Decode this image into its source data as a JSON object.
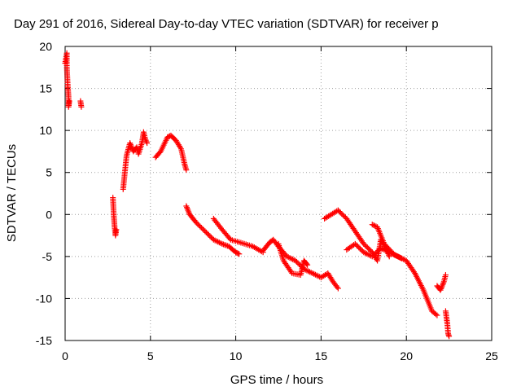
{
  "chart_data": {
    "type": "scatter",
    "title": "Day 291 of 2016, Sidereal Day-to-day VTEC variation (SDTVAR) for receiver p",
    "xlabel": "GPS time / hours",
    "ylabel": "SDTVAR / TECUs",
    "xlim": [
      0,
      25
    ],
    "ylim": [
      -15,
      20
    ],
    "xticks": [
      0,
      5,
      10,
      15,
      20,
      25
    ],
    "yticks": [
      -15,
      -10,
      -5,
      0,
      5,
      10,
      15,
      20
    ],
    "xtick_labels": [
      "0",
      "5",
      "10",
      "15",
      "20",
      "25"
    ],
    "ytick_labels": [
      "-15",
      "-10",
      "-5",
      "0",
      "5",
      "10",
      "15",
      "20"
    ],
    "grid": true,
    "marker": "+",
    "marker_color": "#ff0000",
    "series": [
      {
        "name": "SDTVAR",
        "segments": [
          [
            [
              0.0,
              18.0
            ],
            [
              0.1,
              19.2
            ],
            [
              0.1,
              17.5
            ],
            [
              0.15,
              15.5
            ],
            [
              0.2,
              14.0
            ],
            [
              0.2,
              12.8
            ],
            [
              0.25,
              13.5
            ]
          ],
          [
            [
              0.9,
              13.5
            ],
            [
              0.95,
              12.8
            ]
          ],
          [
            [
              2.8,
              2.0
            ],
            [
              2.85,
              0.0
            ],
            [
              2.9,
              -1.5
            ],
            [
              2.95,
              -2.5
            ],
            [
              3.0,
              -1.8
            ]
          ],
          [
            [
              3.4,
              3.0
            ],
            [
              3.5,
              5.0
            ],
            [
              3.6,
              7.0
            ],
            [
              3.8,
              8.5
            ],
            [
              4.0,
              7.5
            ],
            [
              4.2,
              8.0
            ],
            [
              4.3,
              7.2
            ],
            [
              4.5,
              8.5
            ],
            [
              4.6,
              9.8
            ],
            [
              4.7,
              9.0
            ],
            [
              4.8,
              8.5
            ]
          ],
          [
            [
              5.3,
              6.8
            ],
            [
              5.6,
              7.5
            ],
            [
              6.0,
              9.2
            ],
            [
              6.2,
              9.4
            ],
            [
              6.5,
              8.8
            ],
            [
              6.8,
              7.8
            ],
            [
              7.0,
              6.0
            ],
            [
              7.1,
              5.3
            ]
          ],
          [
            [
              7.1,
              1.0
            ],
            [
              7.3,
              0.0
            ],
            [
              7.7,
              -1.0
            ],
            [
              8.2,
              -2.0
            ],
            [
              8.7,
              -3.0
            ],
            [
              9.2,
              -3.5
            ],
            [
              9.6,
              -3.8
            ],
            [
              10.0,
              -4.5
            ],
            [
              10.2,
              -4.7
            ]
          ],
          [
            [
              8.7,
              -0.5
            ],
            [
              9.2,
              -1.8
            ],
            [
              9.7,
              -3.0
            ],
            [
              10.2,
              -3.3
            ],
            [
              11.0,
              -3.8
            ],
            [
              11.6,
              -4.5
            ]
          ],
          [
            [
              11.6,
              -4.3
            ],
            [
              12.0,
              -3.3
            ],
            [
              12.2,
              -3.0
            ],
            [
              12.5,
              -3.8
            ],
            [
              13.0,
              -5.0
            ],
            [
              13.5,
              -5.5
            ],
            [
              14.0,
              -6.5
            ],
            [
              14.5,
              -7.0
            ],
            [
              15.0,
              -7.5
            ],
            [
              15.4,
              -7.0
            ],
            [
              15.7,
              -8.0
            ],
            [
              16.0,
              -8.8
            ]
          ],
          [
            [
              12.5,
              -3.5
            ],
            [
              12.8,
              -5.5
            ],
            [
              13.3,
              -7.0
            ],
            [
              13.8,
              -7.2
            ],
            [
              14.0,
              -5.5
            ],
            [
              14.2,
              -6.0
            ]
          ],
          [
            [
              15.2,
              -0.5
            ],
            [
              15.6,
              0.0
            ],
            [
              16.0,
              0.5
            ],
            [
              16.5,
              -0.5
            ],
            [
              17.0,
              -2.0
            ],
            [
              17.5,
              -3.5
            ],
            [
              18.0,
              -4.5
            ],
            [
              18.3,
              -5.5
            ],
            [
              18.5,
              -3.0
            ],
            [
              18.8,
              -4.0
            ],
            [
              19.0,
              -5.0
            ]
          ],
          [
            [
              16.5,
              -4.2
            ],
            [
              17.0,
              -3.5
            ],
            [
              17.5,
              -4.5
            ],
            [
              18.0,
              -5.0
            ],
            [
              18.5,
              -4.0
            ],
            [
              19.0,
              -4.5
            ],
            [
              19.5,
              -5.0
            ],
            [
              20.0,
              -5.5
            ],
            [
              20.5,
              -7.0
            ],
            [
              21.0,
              -9.0
            ],
            [
              21.5,
              -11.5
            ],
            [
              21.8,
              -12.0
            ]
          ],
          [
            [
              18.0,
              -1.2
            ],
            [
              18.3,
              -1.5
            ],
            [
              18.7,
              -3.5
            ],
            [
              19.3,
              -4.8
            ],
            [
              19.7,
              -5.2
            ]
          ],
          [
            [
              21.8,
              -8.5
            ],
            [
              22.0,
              -9.0
            ],
            [
              22.2,
              -8.0
            ],
            [
              22.3,
              -7.2
            ]
          ],
          [
            [
              22.3,
              -11.5
            ],
            [
              22.4,
              -13.0
            ],
            [
              22.45,
              -14.2
            ],
            [
              22.5,
              -14.5
            ]
          ]
        ]
      }
    ]
  }
}
